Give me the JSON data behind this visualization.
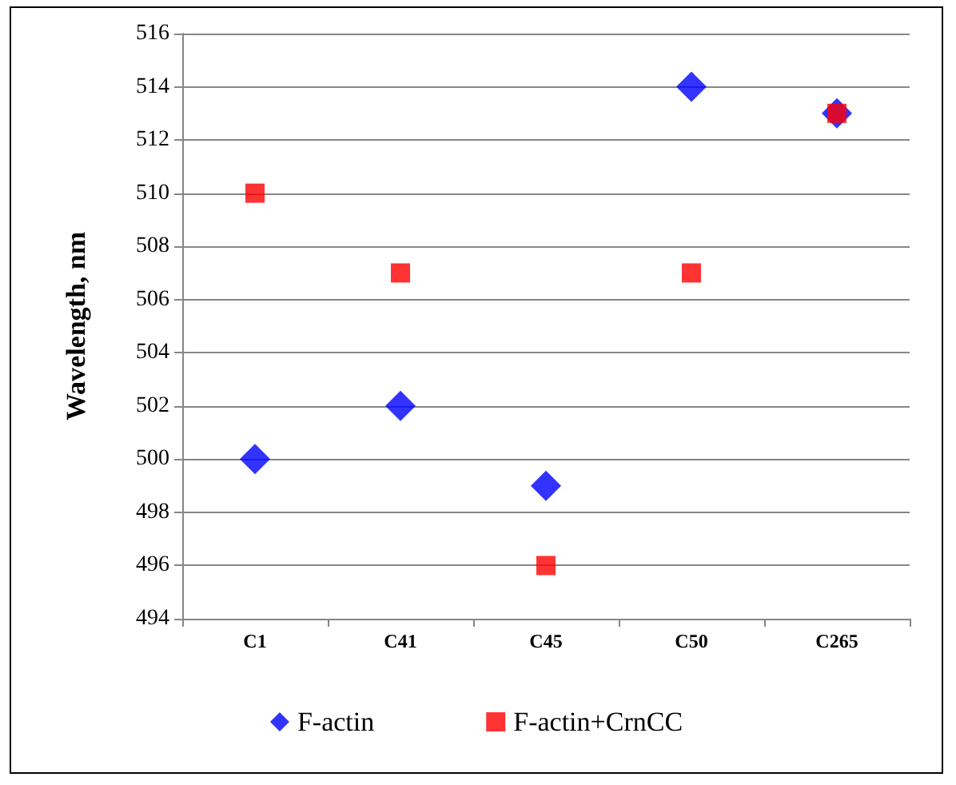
{
  "chart_data": {
    "type": "scatter",
    "ylabel": "Wavelength, nm",
    "categories": [
      "C1",
      "C41",
      "C45",
      "C50",
      "C265"
    ],
    "series": [
      {
        "name": "F-actin",
        "color": "#0000ff",
        "marker": "diamond",
        "values": [
          500,
          502,
          499,
          514,
          513
        ]
      },
      {
        "name": "F-actin+CrnCC",
        "color": "#ff0000",
        "marker": "square",
        "values": [
          510,
          507,
          496,
          507,
          513
        ]
      }
    ],
    "ylim": [
      494,
      516
    ],
    "yticks": [
      494,
      496,
      498,
      500,
      502,
      504,
      506,
      508,
      510,
      512,
      514,
      516
    ],
    "grid": "y",
    "legend": "bottom"
  }
}
